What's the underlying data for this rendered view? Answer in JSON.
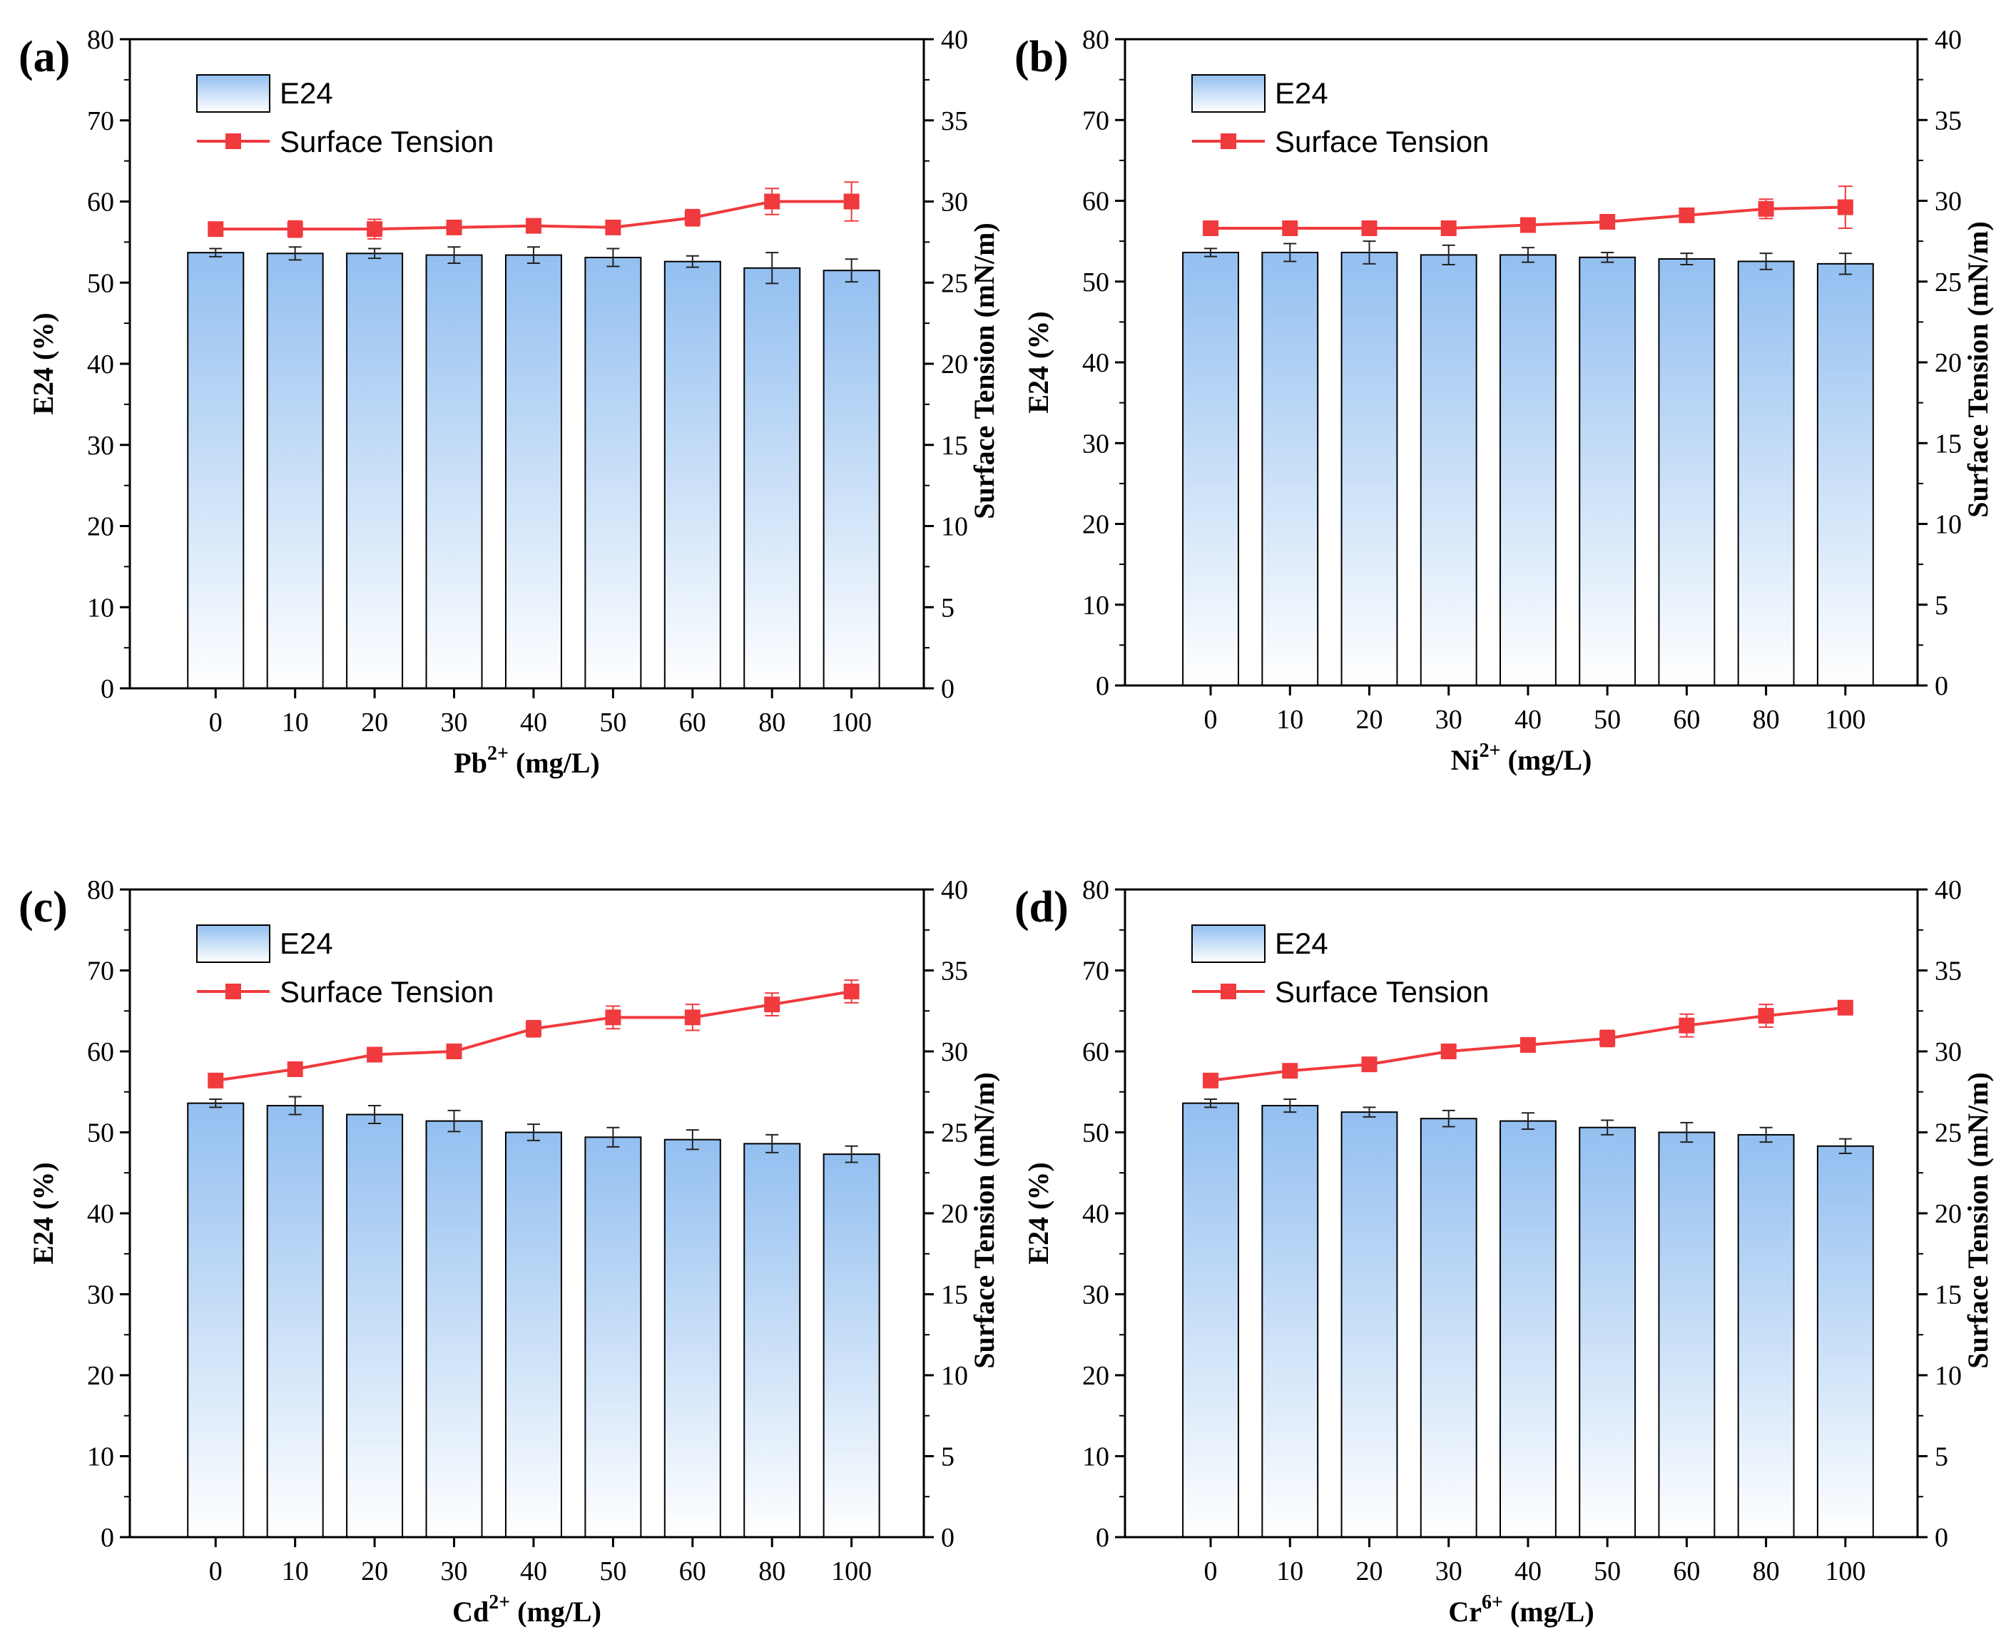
{
  "colors": {
    "bar_top": "#93bff0",
    "bar_bottom": "#ffffff",
    "line": "#f03a3e",
    "axis": "#000000"
  },
  "legend": {
    "bar_label": "E24",
    "line_label": "Surface Tension"
  },
  "chart_data": [
    {
      "type": "bar",
      "panel_label": "(a)",
      "xlabel_prefix": "Pb",
      "xlabel_sup": "2+",
      "xlabel_suffix": " (mg/L)",
      "ylabel_left": "E24 (%)",
      "ylabel_right": "Surface Tension (mN/m)",
      "categories": [
        "0",
        "10",
        "20",
        "30",
        "40",
        "50",
        "60",
        "80",
        "100"
      ],
      "ylim_left": [
        0,
        80
      ],
      "ylim_right": [
        0,
        40
      ],
      "yticks_left": [
        "0",
        "10",
        "20",
        "30",
        "40",
        "50",
        "60",
        "70",
        "80"
      ],
      "yticks_right": [
        "0",
        "5",
        "10",
        "15",
        "20",
        "25",
        "30",
        "35",
        "40"
      ],
      "series": [
        {
          "name": "E24",
          "axis": "left",
          "kind": "bar",
          "values": [
            53.7,
            53.6,
            53.6,
            53.4,
            53.4,
            53.1,
            52.6,
            51.8,
            51.5
          ],
          "errors": [
            0.5,
            0.8,
            0.6,
            1.0,
            1.0,
            1.1,
            0.7,
            1.9,
            1.4
          ]
        },
        {
          "name": "Surface Tension",
          "axis": "right",
          "kind": "line",
          "values": [
            28.3,
            28.3,
            28.3,
            28.4,
            28.5,
            28.4,
            29.0,
            30.0,
            30.0
          ],
          "errors": [
            0.3,
            0.5,
            0.6,
            0.4,
            0.3,
            0.3,
            0.5,
            0.8,
            1.2
          ]
        }
      ]
    },
    {
      "type": "bar",
      "panel_label": "(b)",
      "xlabel_prefix": "Ni",
      "xlabel_sup": "2+",
      "xlabel_suffix": " (mg/L)",
      "ylabel_left": "E24 (%)",
      "ylabel_right": "Surface Tension (mN/m)",
      "categories": [
        "0",
        "10",
        "20",
        "30",
        "40",
        "50",
        "60",
        "80",
        "100"
      ],
      "ylim_left": [
        0,
        80
      ],
      "ylim_right": [
        0,
        40
      ],
      "yticks_left": [
        "0",
        "10",
        "20",
        "30",
        "40",
        "50",
        "60",
        "70",
        "80"
      ],
      "yticks_right": [
        "0",
        "5",
        "10",
        "15",
        "20",
        "25",
        "30",
        "35",
        "40"
      ],
      "series": [
        {
          "name": "E24",
          "axis": "left",
          "kind": "bar",
          "values": [
            53.6,
            53.6,
            53.6,
            53.3,
            53.3,
            53.0,
            52.8,
            52.5,
            52.2
          ],
          "errors": [
            0.5,
            1.1,
            1.4,
            1.2,
            0.9,
            0.6,
            0.7,
            1.0,
            1.3
          ]
        },
        {
          "name": "Surface Tension",
          "axis": "right",
          "kind": "line",
          "values": [
            28.3,
            28.3,
            28.3,
            28.3,
            28.5,
            28.7,
            29.1,
            29.5,
            29.6
          ],
          "errors": [
            0.3,
            0.3,
            0.3,
            0.4,
            0.3,
            0.3,
            0.4,
            0.6,
            1.3
          ]
        }
      ]
    },
    {
      "type": "bar",
      "panel_label": "(c)",
      "xlabel_prefix": "Cd",
      "xlabel_sup": "2+",
      "xlabel_suffix": " (mg/L)",
      "ylabel_left": "E24 (%)",
      "ylabel_right": "Surface Tension (mN/m)",
      "categories": [
        "0",
        "10",
        "20",
        "30",
        "40",
        "50",
        "60",
        "80",
        "100"
      ],
      "ylim_left": [
        0,
        80
      ],
      "ylim_right": [
        0,
        40
      ],
      "yticks_left": [
        "0",
        "10",
        "20",
        "30",
        "40",
        "50",
        "60",
        "70",
        "80"
      ],
      "yticks_right": [
        "0",
        "5",
        "10",
        "15",
        "20",
        "25",
        "30",
        "35",
        "40"
      ],
      "series": [
        {
          "name": "E24",
          "axis": "left",
          "kind": "bar",
          "values": [
            53.6,
            53.3,
            52.2,
            51.4,
            50.0,
            49.4,
            49.1,
            48.6,
            47.3
          ],
          "errors": [
            0.5,
            1.1,
            1.1,
            1.3,
            1.0,
            1.2,
            1.2,
            1.1,
            1.0
          ]
        },
        {
          "name": "Surface Tension",
          "axis": "right",
          "kind": "line",
          "values": [
            28.2,
            28.9,
            29.8,
            30.0,
            31.4,
            32.1,
            32.1,
            32.9,
            33.7
          ],
          "errors": [
            0.3,
            0.3,
            0.3,
            0.3,
            0.5,
            0.7,
            0.8,
            0.7,
            0.7
          ]
        }
      ]
    },
    {
      "type": "bar",
      "panel_label": "(d)",
      "xlabel_prefix": "Cr",
      "xlabel_sup": "6+",
      "xlabel_suffix": " (mg/L)",
      "ylabel_left": "E24 (%)",
      "ylabel_right": "Surface Tension (mN/m)",
      "categories": [
        "0",
        "10",
        "20",
        "30",
        "40",
        "50",
        "60",
        "80",
        "100"
      ],
      "ylim_left": [
        0,
        80
      ],
      "ylim_right": [
        0,
        40
      ],
      "yticks_left": [
        "0",
        "10",
        "20",
        "30",
        "40",
        "50",
        "60",
        "70",
        "80"
      ],
      "yticks_right": [
        "0",
        "5",
        "10",
        "15",
        "20",
        "25",
        "30",
        "35",
        "40"
      ],
      "series": [
        {
          "name": "E24",
          "axis": "left",
          "kind": "bar",
          "values": [
            53.6,
            53.3,
            52.5,
            51.7,
            51.4,
            50.6,
            50.0,
            49.7,
            48.3
          ],
          "errors": [
            0.5,
            0.8,
            0.6,
            1.0,
            1.0,
            0.9,
            1.2,
            0.9,
            0.9
          ]
        },
        {
          "name": "Surface Tension",
          "axis": "right",
          "kind": "line",
          "values": [
            28.2,
            28.8,
            29.2,
            30.0,
            30.4,
            30.8,
            31.6,
            32.2,
            32.7
          ],
          "errors": [
            0.3,
            0.3,
            0.3,
            0.4,
            0.4,
            0.5,
            0.7,
            0.7,
            0.3
          ]
        }
      ]
    }
  ]
}
